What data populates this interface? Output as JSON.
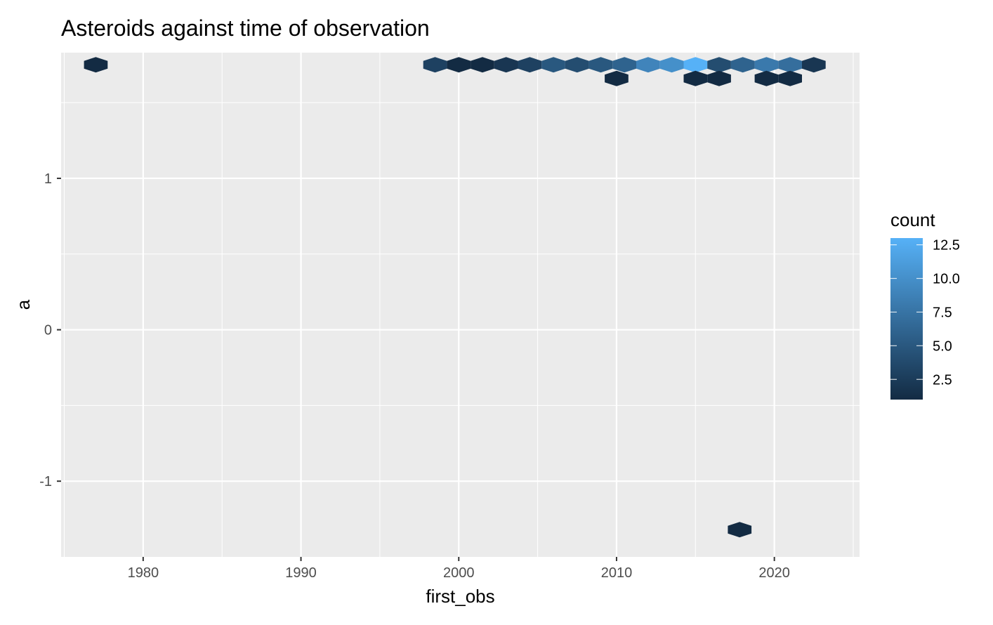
{
  "chart_data": {
    "type": "heatmap",
    "geom": "hexbin",
    "title": "Asteroids against time of observation",
    "xlabel": "first_obs",
    "ylabel": "a",
    "xlim": [
      1974.8,
      2025.4
    ],
    "ylim": [
      -1.5,
      1.83
    ],
    "x_ticks": [
      1980,
      1990,
      2000,
      2010,
      2020
    ],
    "x_tick_labels": [
      "1980",
      "1990",
      "2000",
      "2010",
      "2020"
    ],
    "y_ticks": [
      -1,
      0,
      1
    ],
    "y_tick_labels": [
      "-1",
      "0",
      "1"
    ],
    "grid": true,
    "panel_background": "#EBEBEB",
    "legend": {
      "title": "count",
      "position": "right",
      "range": [
        1,
        13
      ],
      "low_color": "#132B43",
      "high_color": "#56B1F7",
      "tick_values": [
        2.5,
        5.0,
        7.5,
        10.0,
        12.5
      ],
      "tick_labels": [
        "2.5",
        "5.0",
        "7.5",
        "10.0",
        "12.5"
      ]
    },
    "hexagons": [
      {
        "x": 1977.0,
        "y": 1.75,
        "count": 1
      },
      {
        "x": 1998.5,
        "y": 1.75,
        "count": 3
      },
      {
        "x": 2000.0,
        "y": 1.75,
        "count": 1
      },
      {
        "x": 2001.5,
        "y": 1.75,
        "count": 1
      },
      {
        "x": 2003.0,
        "y": 1.75,
        "count": 2
      },
      {
        "x": 2004.5,
        "y": 1.75,
        "count": 3
      },
      {
        "x": 2006.0,
        "y": 1.75,
        "count": 5
      },
      {
        "x": 2007.5,
        "y": 1.75,
        "count": 4
      },
      {
        "x": 2009.0,
        "y": 1.75,
        "count": 5
      },
      {
        "x": 2010.5,
        "y": 1.75,
        "count": 6
      },
      {
        "x": 2012.0,
        "y": 1.75,
        "count": 9
      },
      {
        "x": 2013.5,
        "y": 1.75,
        "count": 10
      },
      {
        "x": 2015.0,
        "y": 1.75,
        "count": 13
      },
      {
        "x": 2016.5,
        "y": 1.75,
        "count": 4
      },
      {
        "x": 2018.0,
        "y": 1.75,
        "count": 6
      },
      {
        "x": 2019.5,
        "y": 1.75,
        "count": 8
      },
      {
        "x": 2021.0,
        "y": 1.75,
        "count": 7
      },
      {
        "x": 2022.5,
        "y": 1.75,
        "count": 2
      },
      {
        "x": 2010.0,
        "y": 1.66,
        "count": 1
      },
      {
        "x": 2015.0,
        "y": 1.66,
        "count": 1
      },
      {
        "x": 2016.5,
        "y": 1.66,
        "count": 1
      },
      {
        "x": 2019.5,
        "y": 1.66,
        "count": 1
      },
      {
        "x": 2021.0,
        "y": 1.66,
        "count": 1
      },
      {
        "x": 2017.8,
        "y": -1.32,
        "count": 1
      }
    ]
  }
}
